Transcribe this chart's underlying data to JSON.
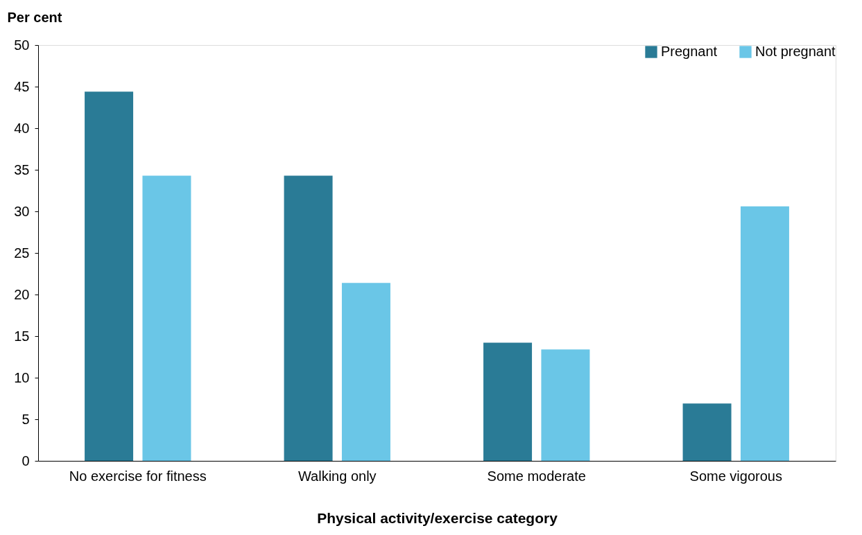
{
  "chart_data": {
    "type": "bar",
    "ylabel": "Per cent",
    "xlabel": "Physical activity/exercise category",
    "categories": [
      "No exercise for fitness",
      "Walking only",
      "Some moderate",
      "Some vigorous"
    ],
    "series": [
      {
        "name": "Pregnant",
        "color": "#2a7b96",
        "values": [
          44.4,
          34.3,
          14.2,
          6.9
        ]
      },
      {
        "name": "Not pregnant",
        "color": "#6ac6e7",
        "values": [
          34.3,
          21.4,
          13.4,
          30.6
        ]
      }
    ],
    "ylim": [
      0,
      50
    ],
    "yticks": [
      0,
      5,
      10,
      15,
      20,
      25,
      30,
      35,
      40,
      45,
      50
    ],
    "grid": false,
    "legend": "top right"
  }
}
